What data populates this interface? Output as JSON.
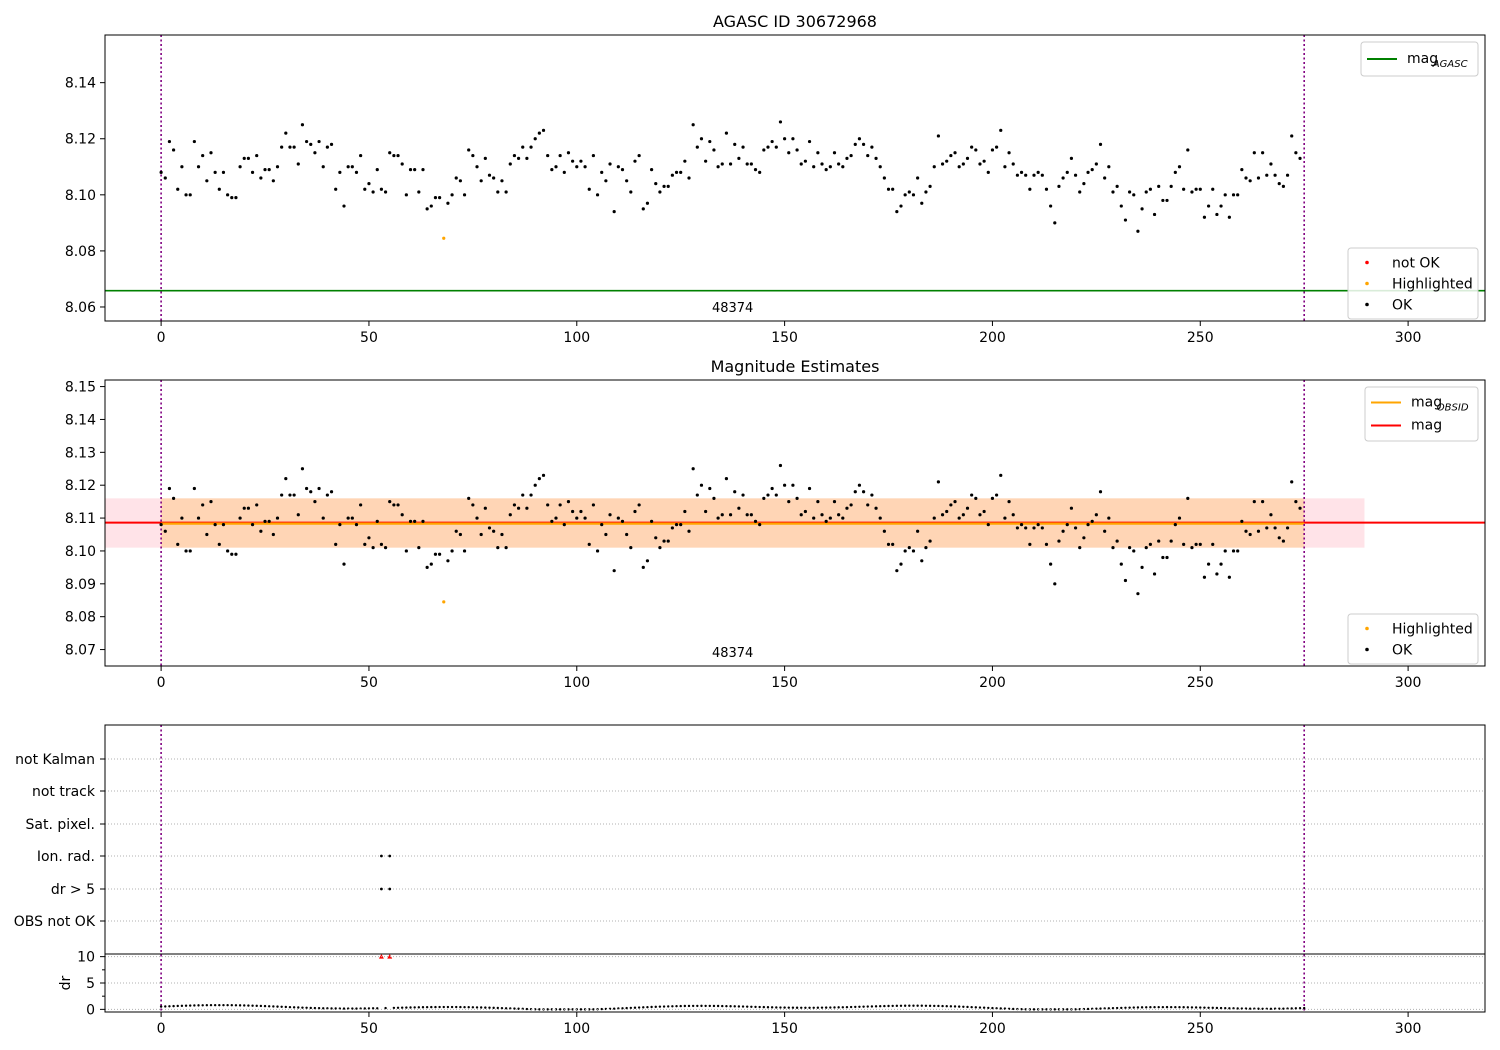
{
  "chart_data": [
    {
      "type": "scatter",
      "title": "AGASC ID 30672968",
      "xlim": [
        -13.5,
        318.5
      ],
      "ylim": [
        8.055,
        8.157
      ],
      "xticks": [
        0,
        50,
        100,
        150,
        200,
        250,
        300
      ],
      "yticks": [
        8.06,
        8.08,
        8.1,
        8.12,
        8.14
      ],
      "ytick_labels": [
        "8.06",
        "8.08",
        "8.10",
        "8.12",
        "8.14"
      ],
      "vlines": [
        0,
        275
      ],
      "hline": {
        "name": "mag_AGASC",
        "y": 8.0658,
        "color": "#008000"
      },
      "obsid_label": {
        "text": "48374",
        "x": 137.5
      },
      "highlighted": [
        {
          "x": 68,
          "y": 8.0845
        }
      ],
      "legend_top": {
        "position": "top-right",
        "entries": [
          {
            "label": "mag",
            "sub": "AGASC",
            "color": "#008000"
          }
        ]
      },
      "legend_bottom": {
        "position": "bottom-right",
        "entries": [
          {
            "label": "not OK",
            "color": "#ff0000"
          },
          {
            "label": "Highlighted",
            "color": "#ffa500"
          },
          {
            "label": "OK",
            "color": "#000000"
          }
        ]
      }
    },
    {
      "type": "scatter",
      "title": "Magnitude Estimates",
      "xlim": [
        -13.5,
        318.5
      ],
      "ylim": [
        8.065,
        8.152
      ],
      "xticks": [
        0,
        50,
        100,
        150,
        200,
        250,
        300
      ],
      "yticks": [
        8.07,
        8.08,
        8.09,
        8.1,
        8.11,
        8.12,
        8.13,
        8.14,
        8.15
      ],
      "ytick_labels": [
        "8.07",
        "8.08",
        "8.09",
        "8.10",
        "8.11",
        "8.12",
        "8.13",
        "8.14",
        "8.15"
      ],
      "vlines": [
        0,
        275
      ],
      "mag_line": {
        "y": 8.1086,
        "color": "#ff0000",
        "x": [
          -13.5,
          318.5
        ]
      },
      "mag_band": {
        "y": [
          8.101,
          8.116
        ],
        "x": [
          -13.5,
          289.5
        ],
        "color": "#ffc0cb"
      },
      "obsid_line": {
        "y": 8.1083,
        "color": "#ffa500",
        "x": [
          0,
          275
        ]
      },
      "obsid_band": {
        "y": [
          8.101,
          8.116
        ],
        "x": [
          0,
          275
        ],
        "color": "#ffa500"
      },
      "obsid_label": {
        "text": "48374",
        "x": 137.5
      },
      "highlighted": [
        {
          "x": 68,
          "y": 8.0845
        }
      ],
      "legend_top": {
        "position": "top-right",
        "entries": [
          {
            "label": "mag",
            "sub": "OBSID",
            "color": "#ffa500"
          },
          {
            "label": "mag",
            "sub": "",
            "color": "#ff0000"
          }
        ]
      },
      "legend_bottom": {
        "position": "bottom-right",
        "entries": [
          {
            "label": "Highlighted",
            "color": "#ffa500"
          },
          {
            "label": "OK",
            "color": "#000000"
          }
        ]
      }
    },
    {
      "type": "scatter",
      "title": "",
      "xlim": [
        -13.5,
        318.5
      ],
      "xticks": [
        0,
        50,
        100,
        150,
        200,
        250,
        300
      ],
      "flag_rows": [
        "not Kalman",
        "not track",
        "Sat. pixel.",
        "Ion. rad.",
        "dr > 5",
        "OBS not OK"
      ],
      "flag_points": {
        "Ion. rad.": [
          53,
          55
        ],
        "dr > 5": [
          53,
          55
        ]
      },
      "vlines": [
        0,
        275
      ],
      "dr_axis": {
        "ylabel": "dr",
        "ylim": [
          -0.5,
          10.5
        ],
        "yticks": [
          0,
          5,
          10
        ],
        "ytick_labels": [
          "0",
          "5",
          "10"
        ],
        "red_points": [
          {
            "x": 53,
            "y": 10
          },
          {
            "x": 55,
            "y": 10
          }
        ]
      }
    }
  ],
  "colors": {
    "ok": "#000000",
    "highlighted": "#ffa500",
    "not_ok": "#ff0000",
    "vline": "#800080",
    "grid": "#b0b0b0"
  }
}
